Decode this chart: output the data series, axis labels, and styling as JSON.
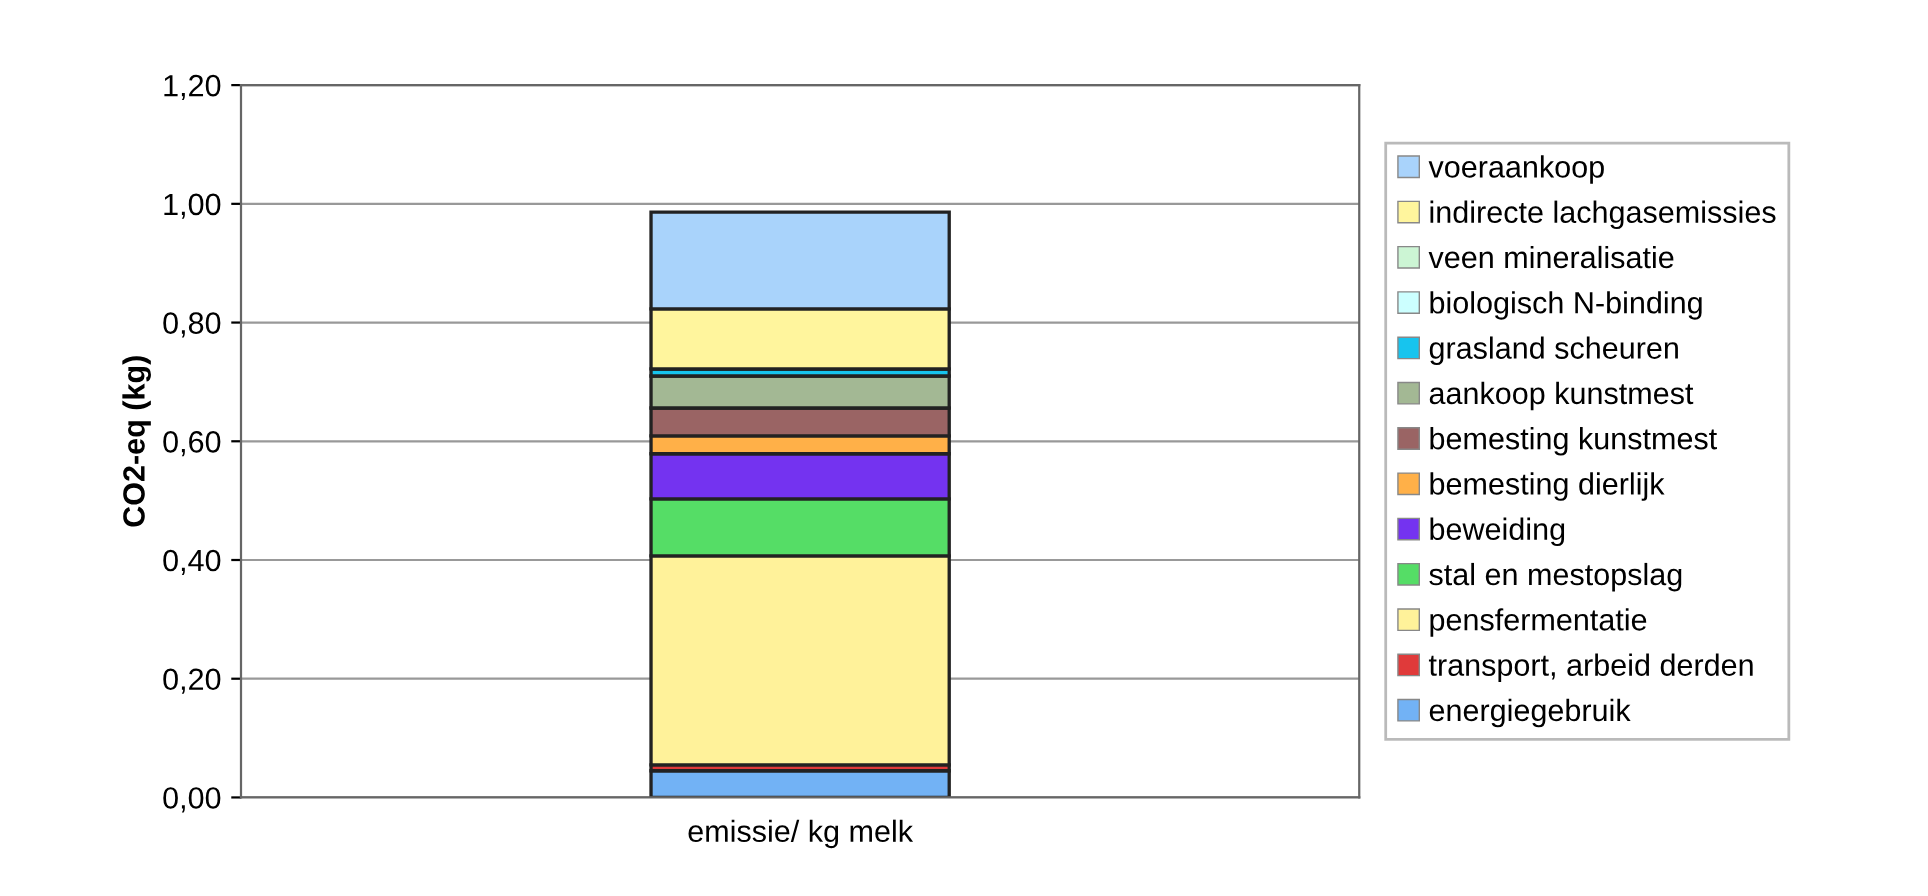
{
  "chart_data": {
    "type": "bar",
    "stacked": true,
    "ylabel": "CO2-eq (kg)",
    "categories": [
      "emissie/ kg melk"
    ],
    "ylim": [
      0,
      1.2
    ],
    "yticks": [
      {
        "value": 0,
        "label": "0,00"
      },
      {
        "value": 0.2,
        "label": "0,20"
      },
      {
        "value": 0.4,
        "label": "0,40"
      },
      {
        "value": 0.6,
        "label": "0,60"
      },
      {
        "value": 0.8,
        "label": "0,80"
      },
      {
        "value": 1.0,
        "label": "1,00"
      },
      {
        "value": 1.2,
        "label": "1,20"
      }
    ],
    "grid": "y",
    "legend": "right",
    "series": [
      {
        "name": "energiegebruik",
        "color": "#72b2f5",
        "values": [
          0.045
        ]
      },
      {
        "name": "transport, arbeid derden",
        "color": "#e03a3a",
        "values": [
          0.01
        ]
      },
      {
        "name": "pensfermentatie",
        "color": "#fff29a",
        "values": [
          0.352
        ]
      },
      {
        "name": "stal en mestopslag",
        "color": "#55dd66",
        "values": [
          0.096
        ]
      },
      {
        "name": "beweiding",
        "color": "#7433f0",
        "values": [
          0.076
        ]
      },
      {
        "name": "bemesting dierlijk",
        "color": "#ffb048",
        "values": [
          0.03
        ]
      },
      {
        "name": "bemesting kunstmest",
        "color": "#9a6464",
        "values": [
          0.047
        ]
      },
      {
        "name": "aankoop kunstmest",
        "color": "#a3b894",
        "values": [
          0.054
        ]
      },
      {
        "name": "grasland scheuren",
        "color": "#17c4ee",
        "values": [
          0.012
        ]
      },
      {
        "name": "biologisch N-binding",
        "color": "#ccffff",
        "values": [
          null
        ]
      },
      {
        "name": "veen mineralisatie",
        "color": "#ccf5d4",
        "values": [
          null
        ]
      },
      {
        "name": "indirecte lachgasemissies",
        "color": "#fff59d",
        "values": [
          0.101
        ]
      },
      {
        "name": "voeraankoop",
        "color": "#a9d3fb",
        "values": [
          0.163
        ]
      }
    ]
  }
}
